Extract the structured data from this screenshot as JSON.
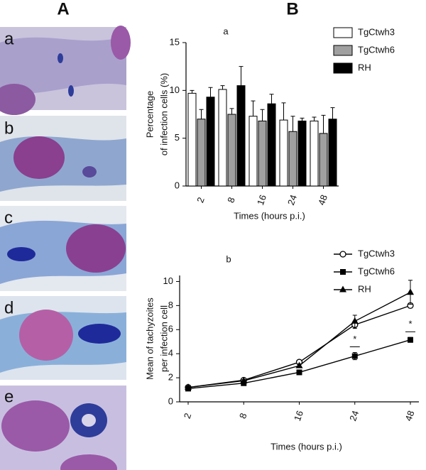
{
  "figure": {
    "panel_a_label": "A",
    "panel_b_label": "B",
    "micrograph_labels": [
      "a",
      "b",
      "c",
      "d",
      "e"
    ]
  },
  "chart_data": [
    {
      "type": "bar",
      "title": "a",
      "ylabel": [
        "Percentage",
        "of infection cells (%)"
      ],
      "xlabel": "Times (hours p.i.)",
      "categories": [
        "2",
        "8",
        "16",
        "24",
        "48"
      ],
      "series": [
        {
          "name": "TgCtwh3",
          "color": "#ffffff",
          "values": [
            9.7,
            10.1,
            7.3,
            6.9,
            6.8
          ],
          "errors": [
            0.3,
            0.4,
            1.6,
            1.8,
            0.4
          ]
        },
        {
          "name": "TgCtwh6",
          "color": "#a0a0a0",
          "values": [
            7.0,
            7.5,
            6.8,
            5.7,
            5.5
          ],
          "errors": [
            1.0,
            0.6,
            1.2,
            1.6,
            1.9
          ]
        },
        {
          "name": "RH",
          "color": "#000000",
          "values": [
            9.3,
            10.5,
            8.6,
            6.8,
            7.0
          ],
          "errors": [
            1.0,
            2.0,
            1.0,
            0.3,
            1.2
          ]
        }
      ],
      "ylim": [
        0,
        15
      ],
      "yticks": [
        0,
        5,
        10,
        15
      ],
      "legend": "upper right"
    },
    {
      "type": "line",
      "title": "b",
      "ylabel": [
        "Mean of tachyzoites",
        "per infection cell"
      ],
      "xlabel": "Times (hours p.i.)",
      "categories": [
        "2",
        "8",
        "16",
        "24",
        "48"
      ],
      "series": [
        {
          "name": "TgCtwh3",
          "color": "#000000",
          "marker": "open-circle",
          "values": [
            1.2,
            1.8,
            3.3,
            6.4,
            8.0
          ],
          "errors": [
            0.1,
            0.1,
            0.15,
            0.3,
            0.2
          ]
        },
        {
          "name": "TgCtwh6",
          "color": "#000000",
          "marker": "square",
          "values": [
            1.1,
            1.55,
            2.45,
            3.8,
            5.15
          ],
          "errors": [
            0.1,
            0.1,
            0.1,
            0.3,
            0.2
          ]
        },
        {
          "name": "RH",
          "color": "#000000",
          "marker": "triangle",
          "values": [
            1.2,
            1.75,
            3.0,
            6.7,
            9.1
          ],
          "errors": [
            0.1,
            0.1,
            0.15,
            0.5,
            1.0
          ]
        }
      ],
      "annotations": [
        "*",
        "*"
      ],
      "ylim": [
        0,
        10.5
      ],
      "yticks": [
        0,
        2,
        4,
        6,
        8,
        10
      ],
      "legend": "upper right"
    }
  ]
}
